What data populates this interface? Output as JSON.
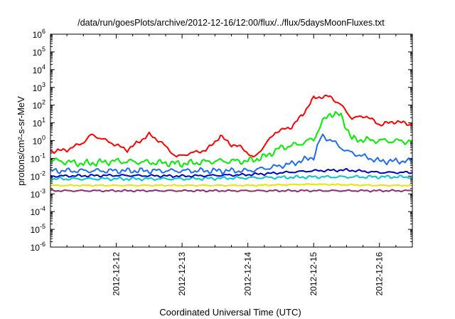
{
  "chart_data": {
    "type": "line",
    "title": "/data/run/goesPlots/archive/2012-12-16/12:00/flux/../flux/5daysMoonFluxes.txt",
    "xlabel": "Coordinated Universal Time (UTC)",
    "ylabel": "protons/cm²-s-sr-MeV",
    "y_scale": "log",
    "xlim": [
      "2012-12-11T00:00",
      "2012-12-16T12:00"
    ],
    "ylim": [
      1e-06,
      1000000.0
    ],
    "x_ticks": [
      "2012-12-12",
      "2012-12-13",
      "2012-12-14",
      "2012-12-15",
      "2012-12-16"
    ],
    "y_ticks": [
      {
        "base": "10",
        "exp": "-6",
        "value": 1e-06
      },
      {
        "base": "10",
        "exp": "-5",
        "value": 1e-05
      },
      {
        "base": "10",
        "exp": "-4",
        "value": 0.0001
      },
      {
        "base": "10",
        "exp": "-3",
        "value": 0.001
      },
      {
        "base": "10",
        "exp": "-2",
        "value": 0.01
      },
      {
        "base": "10",
        "exp": "-1",
        "value": 0.1
      },
      {
        "base": "10",
        "exp": "0",
        "value": 1
      },
      {
        "base": "10",
        "exp": "1",
        "value": 10
      },
      {
        "base": "10",
        "exp": "2",
        "value": 100
      },
      {
        "base": "10",
        "exp": "3",
        "value": 1000
      },
      {
        "base": "10",
        "exp": "4",
        "value": 10000
      },
      {
        "base": "10",
        "exp": "5",
        "value": 100000
      },
      {
        "base": "10",
        "exp": "6",
        "value": 1000000
      }
    ],
    "grid": false,
    "legend": "none",
    "series": [
      {
        "color": "#ff0000",
        "x": [
          "2012-12-11T00:00",
          "2012-12-11T06:00",
          "2012-12-11T12:00",
          "2012-12-11T15:00",
          "2012-12-11T21:00",
          "2012-12-12T04:00",
          "2012-12-12T12:00",
          "2012-12-12T16:00",
          "2012-12-12T22:00",
          "2012-12-13T02:00",
          "2012-12-13T09:00",
          "2012-12-13T14:00",
          "2012-12-13T18:00",
          "2012-12-13T22:00",
          "2012-12-14T02:00",
          "2012-12-14T06:00",
          "2012-12-14T10:00",
          "2012-12-14T16:00",
          "2012-12-14T20:00",
          "2012-12-15T00:00",
          "2012-12-15T03:00",
          "2012-12-15T06:00",
          "2012-12-15T10:00",
          "2012-12-15T14:00",
          "2012-12-15T19:00",
          "2012-12-16T00:00",
          "2012-12-16T06:00",
          "2012-12-16T12:00"
        ],
        "y": [
          0.25,
          0.3,
          0.8,
          2.2,
          0.9,
          0.3,
          2.2,
          0.9,
          0.12,
          0.18,
          0.3,
          1.8,
          0.6,
          0.4,
          0.1,
          0.5,
          3,
          6,
          30,
          250,
          300,
          300,
          100,
          18,
          25,
          8,
          12,
          8
        ]
      },
      {
        "color": "#00ee00",
        "x": [
          "2012-12-11T00:00",
          "2012-12-11T12:00",
          "2012-12-12T00:00",
          "2012-12-12T12:00",
          "2012-12-13T00:00",
          "2012-12-13T12:00",
          "2012-12-14T00:00",
          "2012-12-14T06:00",
          "2012-12-14T12:00",
          "2012-12-14T18:00",
          "2012-12-15T00:00",
          "2012-12-15T03:00",
          "2012-12-15T06:00",
          "2012-12-15T10:00",
          "2012-12-15T14:00",
          "2012-12-16T00:00",
          "2012-12-16T12:00"
        ],
        "y": [
          0.08,
          0.05,
          0.07,
          0.06,
          0.05,
          0.07,
          0.07,
          0.12,
          0.4,
          0.6,
          1.2,
          10,
          35,
          25,
          1.2,
          1.0,
          0.9
        ]
      },
      {
        "color": "#1e6cf0",
        "x": [
          "2012-12-11T00:00",
          "2012-12-11T12:00",
          "2012-12-12T00:00",
          "2012-12-12T12:00",
          "2012-12-13T00:00",
          "2012-12-13T12:00",
          "2012-12-14T00:00",
          "2012-12-14T08:00",
          "2012-12-14T16:00",
          "2012-12-15T00:00",
          "2012-12-15T03:00",
          "2012-12-15T08:00",
          "2012-12-15T12:00",
          "2012-12-16T00:00",
          "2012-12-16T12:00"
        ],
        "y": [
          0.02,
          0.02,
          0.02,
          0.02,
          0.02,
          0.02,
          0.02,
          0.03,
          0.05,
          0.12,
          2,
          0.7,
          0.25,
          0.07,
          0.07
        ]
      },
      {
        "color": "#0000c8",
        "x": [
          "2012-12-11T00:00",
          "2012-12-12T00:00",
          "2012-12-13T00:00",
          "2012-12-14T00:00",
          "2012-12-15T00:00",
          "2012-12-15T12:00",
          "2012-12-16T00:00",
          "2012-12-16T12:00"
        ],
        "y": [
          0.01,
          0.011,
          0.01,
          0.012,
          0.02,
          0.022,
          0.016,
          0.016
        ]
      },
      {
        "color": "#00c8c8",
        "x": [
          "2012-12-11T00:00",
          "2012-12-12T00:00",
          "2012-12-13T00:00",
          "2012-12-14T00:00",
          "2012-12-15T00:00",
          "2012-12-16T00:00",
          "2012-12-16T12:00"
        ],
        "y": [
          0.007,
          0.007,
          0.007,
          0.008,
          0.009,
          0.009,
          0.009
        ]
      },
      {
        "color": "#e6e600",
        "x": [
          "2012-12-11T00:00",
          "2012-12-12T00:00",
          "2012-12-13T00:00",
          "2012-12-14T00:00",
          "2012-12-15T00:00",
          "2012-12-16T00:00",
          "2012-12-16T12:00"
        ],
        "y": [
          0.003,
          0.003,
          0.003,
          0.003,
          0.0035,
          0.003,
          0.003
        ]
      },
      {
        "color": "#8b2d6e",
        "x": [
          "2012-12-11T00:00",
          "2012-12-12T00:00",
          "2012-12-13T00:00",
          "2012-12-14T00:00",
          "2012-12-15T00:00",
          "2012-12-16T00:00",
          "2012-12-16T12:00"
        ],
        "y": [
          0.0015,
          0.0015,
          0.0015,
          0.0015,
          0.0015,
          0.0015,
          0.0015
        ]
      }
    ]
  }
}
